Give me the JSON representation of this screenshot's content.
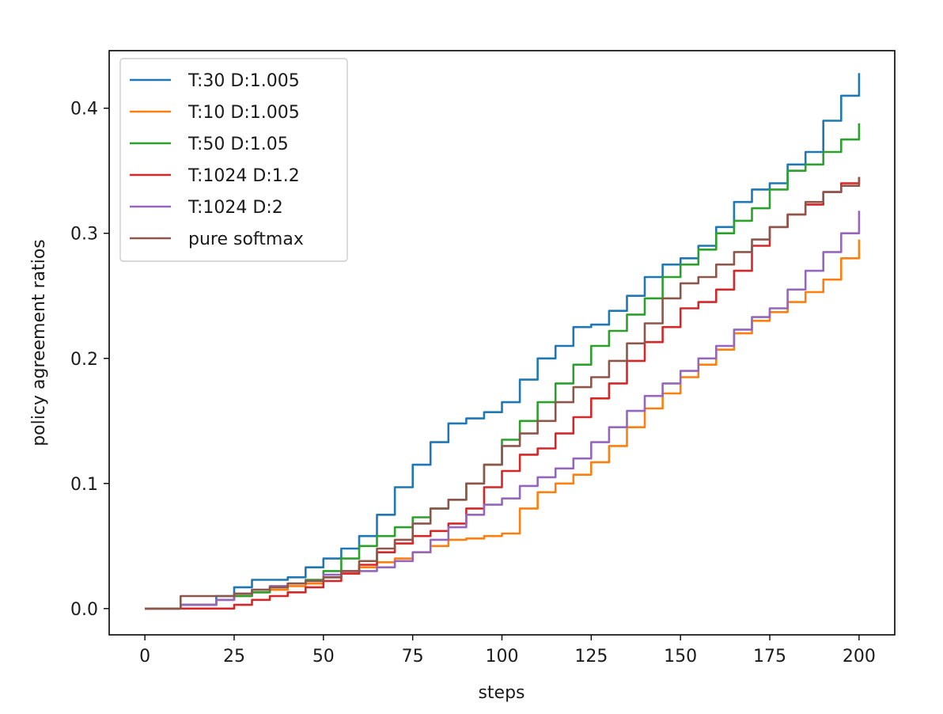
{
  "chart_data": {
    "type": "line",
    "title": "",
    "xlabel": "steps",
    "ylabel": "policy agreement ratios",
    "xlim": [
      -10,
      210
    ],
    "ylim": [
      -0.021,
      0.446
    ],
    "xticks": [
      0,
      25,
      50,
      75,
      100,
      125,
      150,
      175,
      200
    ],
    "xtick_labels": [
      "0",
      "25",
      "50",
      "75",
      "100",
      "125",
      "150",
      "175",
      "200"
    ],
    "yticks": [
      0.0,
      0.1,
      0.2,
      0.3,
      0.4
    ],
    "ytick_labels": [
      "0.0",
      "0.1",
      "0.2",
      "0.3",
      "0.4"
    ],
    "grid": false,
    "legend_position": "top-left",
    "series": [
      {
        "name": "T:30 D:1.005",
        "color": "#1f77b4",
        "x": [
          0,
          10,
          20,
          25,
          30,
          35,
          40,
          45,
          50,
          55,
          60,
          65,
          70,
          75,
          80,
          85,
          90,
          95,
          100,
          105,
          110,
          115,
          120,
          125,
          130,
          135,
          140,
          145,
          150,
          155,
          160,
          165,
          170,
          175,
          180,
          185,
          190,
          195,
          200
        ],
        "y": [
          0.0,
          0.003,
          0.01,
          0.017,
          0.023,
          0.023,
          0.025,
          0.033,
          0.04,
          0.048,
          0.058,
          0.075,
          0.097,
          0.115,
          0.133,
          0.148,
          0.152,
          0.157,
          0.165,
          0.183,
          0.2,
          0.21,
          0.225,
          0.227,
          0.238,
          0.25,
          0.265,
          0.275,
          0.28,
          0.29,
          0.305,
          0.325,
          0.335,
          0.34,
          0.355,
          0.365,
          0.39,
          0.41,
          0.428
        ]
      },
      {
        "name": "T:10 D:1.005",
        "color": "#ff7f0e",
        "x": [
          0,
          10,
          20,
          25,
          30,
          35,
          40,
          45,
          50,
          55,
          60,
          65,
          70,
          75,
          80,
          85,
          90,
          95,
          100,
          105,
          110,
          115,
          120,
          125,
          130,
          135,
          140,
          145,
          150,
          155,
          160,
          165,
          170,
          175,
          180,
          185,
          190,
          195,
          200
        ],
        "y": [
          0.0,
          0.003,
          0.007,
          0.01,
          0.013,
          0.015,
          0.018,
          0.02,
          0.025,
          0.028,
          0.033,
          0.037,
          0.04,
          0.045,
          0.05,
          0.055,
          0.056,
          0.058,
          0.06,
          0.08,
          0.093,
          0.1,
          0.107,
          0.117,
          0.13,
          0.145,
          0.16,
          0.172,
          0.185,
          0.195,
          0.207,
          0.22,
          0.23,
          0.237,
          0.245,
          0.253,
          0.263,
          0.28,
          0.295
        ]
      },
      {
        "name": "T:50 D:1.05",
        "color": "#2ca02c",
        "x": [
          0,
          10,
          20,
          25,
          30,
          35,
          40,
          45,
          50,
          55,
          60,
          65,
          70,
          75,
          80,
          85,
          90,
          95,
          100,
          105,
          110,
          115,
          120,
          125,
          130,
          135,
          140,
          145,
          150,
          155,
          160,
          165,
          170,
          175,
          180,
          185,
          190,
          195,
          200
        ],
        "y": [
          0.0,
          0.003,
          0.007,
          0.01,
          0.013,
          0.017,
          0.02,
          0.023,
          0.03,
          0.04,
          0.05,
          0.058,
          0.065,
          0.073,
          0.08,
          0.087,
          0.1,
          0.115,
          0.135,
          0.15,
          0.165,
          0.18,
          0.195,
          0.21,
          0.222,
          0.235,
          0.248,
          0.265,
          0.275,
          0.287,
          0.3,
          0.31,
          0.32,
          0.335,
          0.35,
          0.355,
          0.365,
          0.375,
          0.388
        ]
      },
      {
        "name": "T:1024 D:1.2",
        "color": "#d62728",
        "x": [
          0,
          10,
          20,
          25,
          30,
          35,
          40,
          45,
          50,
          55,
          60,
          65,
          70,
          75,
          80,
          85,
          90,
          95,
          100,
          105,
          110,
          115,
          120,
          125,
          130,
          135,
          140,
          145,
          150,
          155,
          160,
          165,
          170,
          175,
          180,
          185,
          190,
          195,
          200
        ],
        "y": [
          0.0,
          0.0,
          0.0,
          0.003,
          0.007,
          0.01,
          0.013,
          0.017,
          0.022,
          0.028,
          0.035,
          0.045,
          0.052,
          0.058,
          0.062,
          0.068,
          0.08,
          0.097,
          0.11,
          0.123,
          0.128,
          0.14,
          0.153,
          0.168,
          0.18,
          0.198,
          0.213,
          0.225,
          0.24,
          0.245,
          0.255,
          0.27,
          0.29,
          0.305,
          0.315,
          0.323,
          0.333,
          0.34,
          0.345
        ]
      },
      {
        "name": "T:1024 D:2",
        "color": "#9467bd",
        "x": [
          0,
          10,
          20,
          25,
          30,
          35,
          40,
          45,
          50,
          55,
          60,
          65,
          70,
          75,
          80,
          85,
          90,
          95,
          100,
          105,
          110,
          115,
          120,
          125,
          130,
          135,
          140,
          145,
          150,
          155,
          160,
          165,
          170,
          175,
          180,
          185,
          190,
          195,
          200
        ],
        "y": [
          0.0,
          0.003,
          0.007,
          0.012,
          0.015,
          0.018,
          0.02,
          0.022,
          0.027,
          0.03,
          0.03,
          0.033,
          0.038,
          0.045,
          0.055,
          0.065,
          0.075,
          0.083,
          0.088,
          0.098,
          0.105,
          0.112,
          0.12,
          0.133,
          0.145,
          0.158,
          0.17,
          0.18,
          0.19,
          0.2,
          0.21,
          0.223,
          0.233,
          0.24,
          0.255,
          0.27,
          0.285,
          0.3,
          0.318
        ]
      },
      {
        "name": "pure softmax",
        "color": "#8c564b",
        "x": [
          0,
          10,
          20,
          25,
          30,
          35,
          40,
          45,
          50,
          55,
          60,
          65,
          70,
          75,
          80,
          85,
          90,
          95,
          100,
          105,
          110,
          115,
          120,
          125,
          130,
          135,
          140,
          145,
          150,
          155,
          160,
          165,
          170,
          175,
          180,
          185,
          190,
          195,
          200
        ],
        "y": [
          0.0,
          0.01,
          0.01,
          0.012,
          0.015,
          0.017,
          0.02,
          0.022,
          0.025,
          0.03,
          0.038,
          0.048,
          0.055,
          0.068,
          0.08,
          0.087,
          0.1,
          0.115,
          0.13,
          0.14,
          0.15,
          0.165,
          0.177,
          0.185,
          0.198,
          0.212,
          0.228,
          0.248,
          0.26,
          0.265,
          0.275,
          0.285,
          0.295,
          0.305,
          0.315,
          0.325,
          0.333,
          0.338,
          0.345
        ]
      }
    ]
  }
}
